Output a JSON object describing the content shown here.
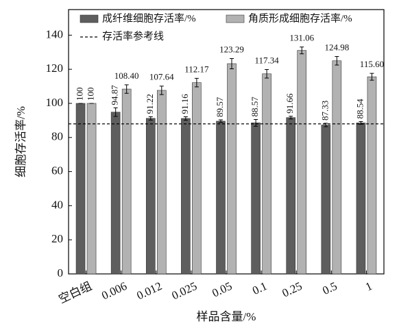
{
  "chart_data": {
    "type": "bar",
    "x_label": "样品含量/%",
    "y_label": "细胞存活率/%",
    "categories": [
      "空白组",
      "0.006",
      "0.012",
      "0.025",
      "0.05",
      "0.1",
      "0.25",
      "0.5",
      "1"
    ],
    "series": [
      {
        "name": "成纤维细胞存活率/%",
        "color": "#5e5e5e",
        "values": [
          100,
          94.87,
          91.22,
          91.16,
          89.57,
          88.57,
          91.66,
          87.33,
          88.54
        ],
        "errors": [
          0,
          2.5,
          1,
          1,
          0.8,
          2,
          0.8,
          1,
          0.8
        ]
      },
      {
        "name": "角质形成细胞存活率/%",
        "color": "#b2b2b2",
        "values": [
          100,
          108.4,
          107.64,
          112.17,
          123.29,
          117.34,
          131.06,
          124.98,
          115.6
        ],
        "value_labels": [
          "100",
          "108.40",
          "107.64",
          "112.17",
          "123.29",
          "117.34",
          "131.06",
          "124.98",
          "115.60"
        ],
        "errors": [
          0,
          2.5,
          2.5,
          2.5,
          3,
          2.5,
          2,
          2.5,
          2
        ]
      }
    ],
    "reference_line": {
      "name": "存活率参考线",
      "value": 88
    },
    "ylim": [
      0,
      155
    ],
    "yticks": [
      0,
      20,
      40,
      60,
      80,
      100,
      120,
      140
    ]
  }
}
